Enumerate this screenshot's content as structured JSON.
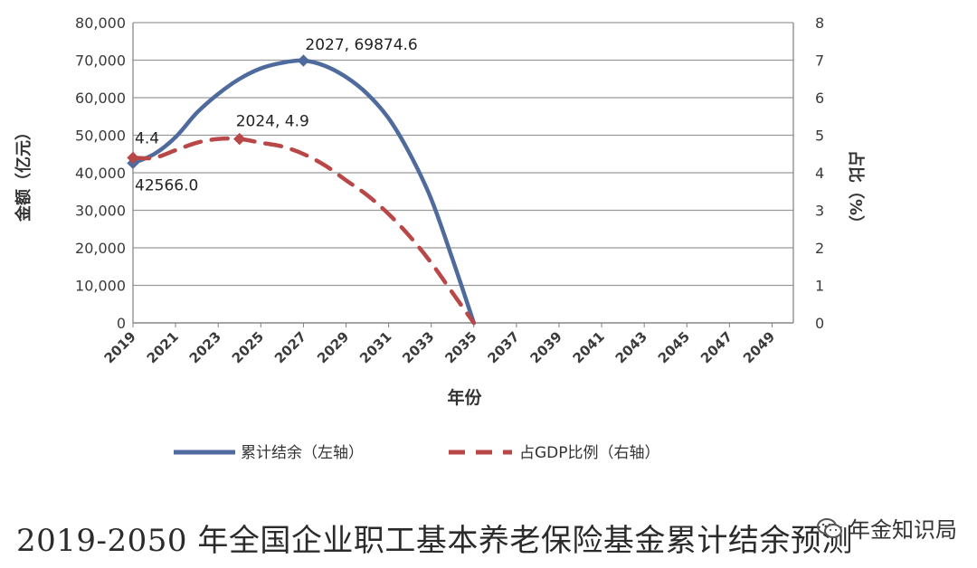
{
  "chart_data": {
    "type": "line",
    "x": [
      2019,
      2020,
      2021,
      2022,
      2023,
      2024,
      2025,
      2026,
      2027,
      2028,
      2029,
      2030,
      2031,
      2032,
      2033,
      2034,
      2035
    ],
    "series": [
      {
        "name": "累计结余（左轴）",
        "axis": "left",
        "color": "#4f6a9c",
        "style": "solid",
        "values": [
          42566.0,
          45000,
          49500,
          56000,
          61000,
          65000,
          67800,
          69300,
          69874.6,
          68500,
          65500,
          61000,
          54500,
          45000,
          33000,
          17000,
          0
        ]
      },
      {
        "name": "占GDP比例（右轴）",
        "axis": "right",
        "color": "#b94747",
        "style": "dashed",
        "values": [
          4.4,
          4.4,
          4.6,
          4.8,
          4.9,
          4.9,
          4.8,
          4.7,
          4.5,
          4.2,
          3.8,
          3.4,
          2.9,
          2.3,
          1.6,
          0.8,
          0
        ]
      }
    ],
    "ylim_left": [
      0,
      80000
    ],
    "ylim_right": [
      0,
      8
    ],
    "xlim": [
      2019,
      2050
    ],
    "y_ticks_left": [
      "0",
      "10,000",
      "20,000",
      "30,000",
      "40,000",
      "50,000",
      "60,000",
      "70,000",
      "80,000"
    ],
    "y_ticks_right": [
      "0",
      "1",
      "2",
      "3",
      "4",
      "5",
      "6",
      "7",
      "8"
    ],
    "x_ticks": [
      "2019",
      "2021",
      "2023",
      "2025",
      "2027",
      "2029",
      "2031",
      "2033",
      "2035",
      "2037",
      "2039",
      "2041",
      "2043",
      "2045",
      "2047",
      "2049"
    ],
    "ylabel_left": "金额（亿元）",
    "ylabel_right": "占比（%）",
    "xlabel": "年份",
    "grid": true,
    "legend_position": "bottom",
    "annotations": [
      {
        "text": "2027, 69874.6"
      },
      {
        "text": "2024, 4.9"
      },
      {
        "text": "4.4"
      },
      {
        "text": "42566.0"
      }
    ]
  },
  "caption": "2019-2050 年全国企业职工基本养老保险基金累计结余预测",
  "watermark": {
    "icon": "wechat-icon",
    "text": "年金知识局"
  }
}
